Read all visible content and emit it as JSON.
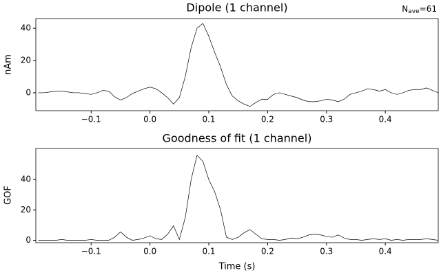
{
  "chart_data": [
    {
      "type": "line",
      "title": "Dipole (1 channel)",
      "ylabel": "nAm",
      "annotation": {
        "base": "N",
        "sub": "ave",
        "rest": "=61"
      },
      "x": [
        -0.19,
        -0.18,
        -0.17,
        -0.16,
        -0.15,
        -0.14,
        -0.13,
        -0.12,
        -0.11,
        -0.1,
        -0.09,
        -0.08,
        -0.07,
        -0.06,
        -0.05,
        -0.04,
        -0.03,
        -0.02,
        -0.01,
        0.0,
        0.01,
        0.02,
        0.03,
        0.04,
        0.05,
        0.06,
        0.07,
        0.08,
        0.09,
        0.1,
        0.11,
        0.12,
        0.13,
        0.14,
        0.15,
        0.16,
        0.17,
        0.18,
        0.19,
        0.2,
        0.21,
        0.22,
        0.23,
        0.24,
        0.25,
        0.26,
        0.27,
        0.28,
        0.29,
        0.3,
        0.31,
        0.32,
        0.33,
        0.34,
        0.35,
        0.36,
        0.37,
        0.38,
        0.39,
        0.4,
        0.41,
        0.42,
        0.43,
        0.44,
        0.45,
        0.46,
        0.47,
        0.48,
        0.49
      ],
      "series": [
        {
          "color": "#000000",
          "values": [
            0,
            0,
            0.5,
            1,
            1,
            0.5,
            0,
            0,
            -0.5,
            -1,
            0,
            1.5,
            1,
            -2.5,
            -4.5,
            -3,
            -0.5,
            1,
            2.5,
            3.5,
            2.5,
            0,
            -3,
            -7,
            -3,
            10,
            28,
            40,
            43,
            35,
            25,
            16,
            5,
            -2,
            -5,
            -7,
            -8.5,
            -6,
            -4,
            -4,
            -1,
            0,
            -1,
            -2,
            -3,
            -4.5,
            -5.5,
            -5.5,
            -5,
            -4,
            -4.5,
            -5.5,
            -4,
            -1,
            0,
            1,
            2.5,
            2,
            1,
            2,
            0,
            -1,
            0,
            1.5,
            2,
            2,
            3,
            1.5,
            0
          ]
        }
      ],
      "xlim": [
        -0.194,
        0.49
      ],
      "ylim": [
        -11.1,
        46
      ],
      "xticks": [
        {
          "value": -0.1,
          "label": "−0.1"
        },
        {
          "value": 0,
          "label": "0.0"
        },
        0.1,
        0.2,
        0.3,
        0.4
      ],
      "yticks": [
        0,
        20,
        40
      ]
    },
    {
      "type": "line",
      "title": "Goodness of fit (1 channel)",
      "ylabel": "GOF",
      "xlabel": "Time (s)",
      "x": [
        -0.19,
        -0.18,
        -0.17,
        -0.16,
        -0.15,
        -0.14,
        -0.13,
        -0.12,
        -0.11,
        -0.1,
        -0.09,
        -0.08,
        -0.07,
        -0.06,
        -0.05,
        -0.04,
        -0.03,
        -0.02,
        -0.01,
        0.0,
        0.01,
        0.02,
        0.03,
        0.04,
        0.05,
        0.06,
        0.07,
        0.08,
        0.09,
        0.1,
        0.11,
        0.12,
        0.13,
        0.14,
        0.15,
        0.16,
        0.17,
        0.18,
        0.19,
        0.2,
        0.21,
        0.22,
        0.23,
        0.24,
        0.25,
        0.26,
        0.27,
        0.28,
        0.29,
        0.3,
        0.31,
        0.32,
        0.33,
        0.34,
        0.35,
        0.36,
        0.37,
        0.38,
        0.39,
        0.4,
        0.41,
        0.42,
        0.43,
        0.44,
        0.45,
        0.46,
        0.47,
        0.48,
        0.49
      ],
      "series": [
        {
          "color": "#000000",
          "values": [
            0,
            0,
            0,
            0,
            0.5,
            0,
            0,
            0,
            0,
            0.5,
            0,
            0,
            0,
            2,
            5.5,
            2,
            0,
            0.5,
            1.5,
            3,
            1,
            0.5,
            4,
            9.5,
            0.5,
            15,
            40,
            56,
            52,
            40,
            32,
            20,
            2,
            0.5,
            2,
            5,
            7,
            4,
            1,
            0.5,
            0.5,
            0,
            0.5,
            1.5,
            1,
            2,
            3.5,
            4,
            3.5,
            2.5,
            2,
            3.5,
            1.5,
            0.5,
            0.5,
            0,
            0.5,
            1,
            0.5,
            1,
            0,
            0.5,
            0,
            0.5,
            0.5,
            0.5,
            1,
            0.5,
            0
          ]
        }
      ],
      "xlim": [
        -0.194,
        0.49
      ],
      "ylim": [
        -1.6,
        60.5
      ],
      "xticks": [
        {
          "value": -0.1,
          "label": "−0.1"
        },
        {
          "value": 0,
          "label": "0.0"
        },
        0.1,
        0.2,
        0.3,
        0.4
      ],
      "yticks": [
        0,
        20,
        40
      ]
    }
  ]
}
